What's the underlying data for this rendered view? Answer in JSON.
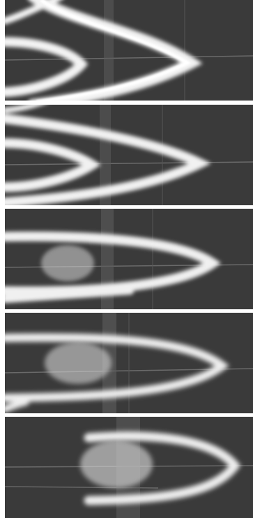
{
  "figure": {
    "panel_count": 5,
    "background_color": "#3a3a3a",
    "trace_color": "#ffffff",
    "separator_color": "#ffffff"
  },
  "panels": [
    {
      "id": "panel-1"
    },
    {
      "id": "panel-2"
    },
    {
      "id": "panel-3"
    },
    {
      "id": "panel-4"
    },
    {
      "id": "panel-5"
    }
  ]
}
